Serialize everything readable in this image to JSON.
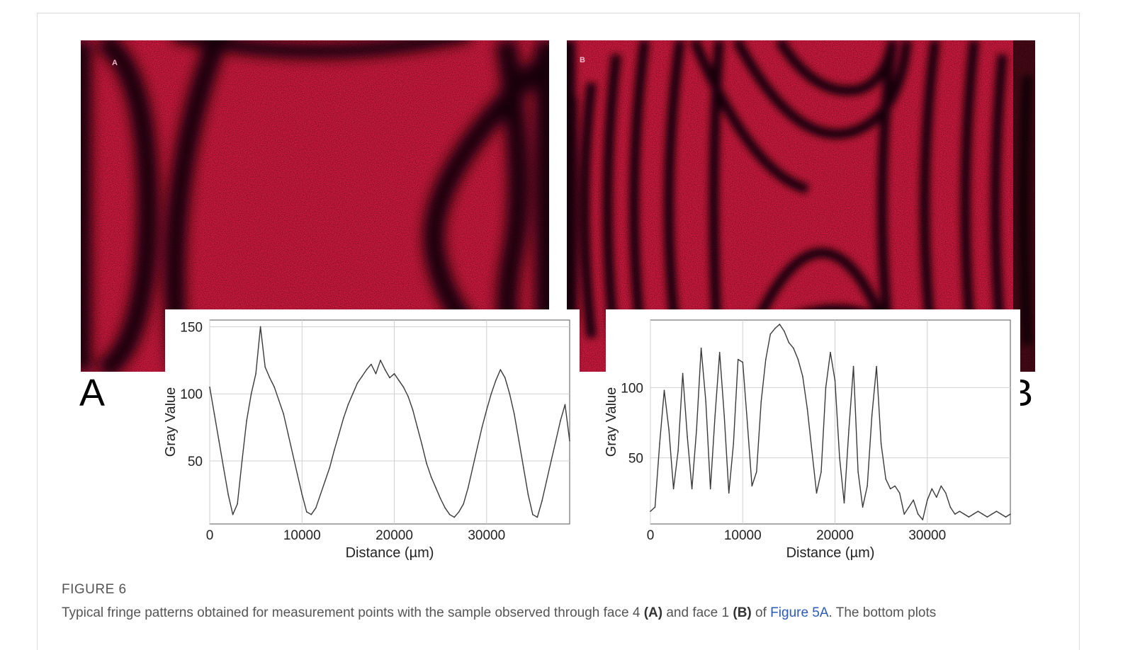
{
  "figure": {
    "label": "FIGURE 6",
    "caption": {
      "part1": "Typical fringe patterns obtained for measurement points with the sample observed through face 4 ",
      "ref_a": "(A)",
      "part2": " and face 1 ",
      "ref_b": "(B)",
      "part3": " of ",
      "link": "Figure 5A",
      "part4": ". The bottom plots"
    },
    "panel_a": {
      "image_letter": "A",
      "panel_letter": "A"
    },
    "panel_b": {
      "image_letter": "B",
      "panel_letter": "B"
    }
  },
  "colors": {
    "fringe_red": "#d41a40",
    "fringe_dark": "#1a0508",
    "plot_line": "#3a3a3a",
    "grid": "#d0d0d0",
    "link": "#2a5bb8"
  },
  "chart_data": [
    {
      "type": "line",
      "panel": "A",
      "xlabel": "Distance (µm)",
      "ylabel": "Gray Value",
      "xlim": [
        0,
        39000
      ],
      "ylim": [
        3,
        155
      ],
      "xticks": [
        0,
        10000,
        20000,
        30000
      ],
      "yticks": [
        50,
        100,
        150
      ],
      "grid": true,
      "x": [
        0,
        500,
        1000,
        1500,
        2000,
        2500,
        3000,
        3500,
        4000,
        4500,
        5000,
        5500,
        6000,
        6500,
        7000,
        7500,
        8000,
        8500,
        9000,
        9500,
        10000,
        10500,
        11000,
        11500,
        12000,
        12500,
        13000,
        13500,
        14000,
        14500,
        15000,
        15500,
        16000,
        16500,
        17000,
        17500,
        18000,
        18500,
        19000,
        19500,
        20000,
        20500,
        21000,
        21500,
        22000,
        22500,
        23000,
        23500,
        24000,
        24500,
        25000,
        25500,
        26000,
        26500,
        27000,
        27500,
        28000,
        28500,
        29000,
        29500,
        30000,
        30500,
        31000,
        31500,
        32000,
        32500,
        33000,
        33500,
        34000,
        34500,
        35000,
        35500,
        36000,
        36500,
        37000,
        37500,
        38000,
        38500,
        39000
      ],
      "values": [
        105,
        85,
        65,
        45,
        25,
        10,
        18,
        50,
        80,
        100,
        115,
        150,
        120,
        112,
        105,
        95,
        85,
        70,
        55,
        40,
        25,
        12,
        10,
        15,
        25,
        35,
        45,
        58,
        70,
        82,
        92,
        100,
        108,
        113,
        118,
        122,
        115,
        125,
        118,
        112,
        115,
        110,
        105,
        98,
        88,
        75,
        62,
        48,
        38,
        30,
        22,
        15,
        10,
        8,
        12,
        18,
        30,
        45,
        60,
        75,
        88,
        100,
        110,
        118,
        112,
        100,
        85,
        65,
        45,
        25,
        10,
        8,
        20,
        35,
        50,
        65,
        80,
        92,
        65
      ]
    },
    {
      "type": "line",
      "panel": "B",
      "xlabel": "Distance (µm)",
      "ylabel": "Gray Value",
      "xlim": [
        0,
        39000
      ],
      "ylim": [
        3,
        148
      ],
      "xticks": [
        0,
        10000,
        20000,
        30000
      ],
      "yticks": [
        50,
        100
      ],
      "grid": true,
      "x": [
        0,
        500,
        1000,
        1500,
        2000,
        2500,
        3000,
        3500,
        4000,
        4500,
        5000,
        5500,
        6000,
        6500,
        7000,
        7500,
        8000,
        8500,
        9000,
        9500,
        10000,
        10500,
        11000,
        11500,
        12000,
        12500,
        13000,
        13500,
        14000,
        14500,
        15000,
        15500,
        16000,
        16500,
        17000,
        17500,
        18000,
        18500,
        19000,
        19500,
        20000,
        20500,
        21000,
        21500,
        22000,
        22500,
        23000,
        23500,
        24000,
        24500,
        25000,
        25500,
        26000,
        26500,
        27000,
        27500,
        28000,
        28500,
        29000,
        29500,
        30000,
        30500,
        31000,
        31500,
        32000,
        32500,
        33000,
        33500,
        34000,
        34500,
        35000,
        35500,
        36000,
        36500,
        37000,
        37500,
        38000,
        38500,
        39000
      ],
      "values": [
        12,
        15,
        60,
        98,
        70,
        28,
        55,
        110,
        65,
        28,
        70,
        128,
        90,
        28,
        80,
        125,
        80,
        25,
        60,
        120,
        118,
        75,
        30,
        40,
        90,
        120,
        138,
        142,
        145,
        140,
        132,
        128,
        120,
        108,
        85,
        55,
        25,
        40,
        100,
        125,
        105,
        50,
        18,
        70,
        115,
        40,
        15,
        30,
        80,
        115,
        60,
        35,
        28,
        30,
        25,
        10,
        15,
        20,
        10,
        6,
        20,
        28,
        22,
        30,
        25,
        15,
        10,
        12,
        10,
        8,
        10,
        12,
        10,
        8,
        10,
        12,
        10,
        8,
        10
      ]
    }
  ]
}
